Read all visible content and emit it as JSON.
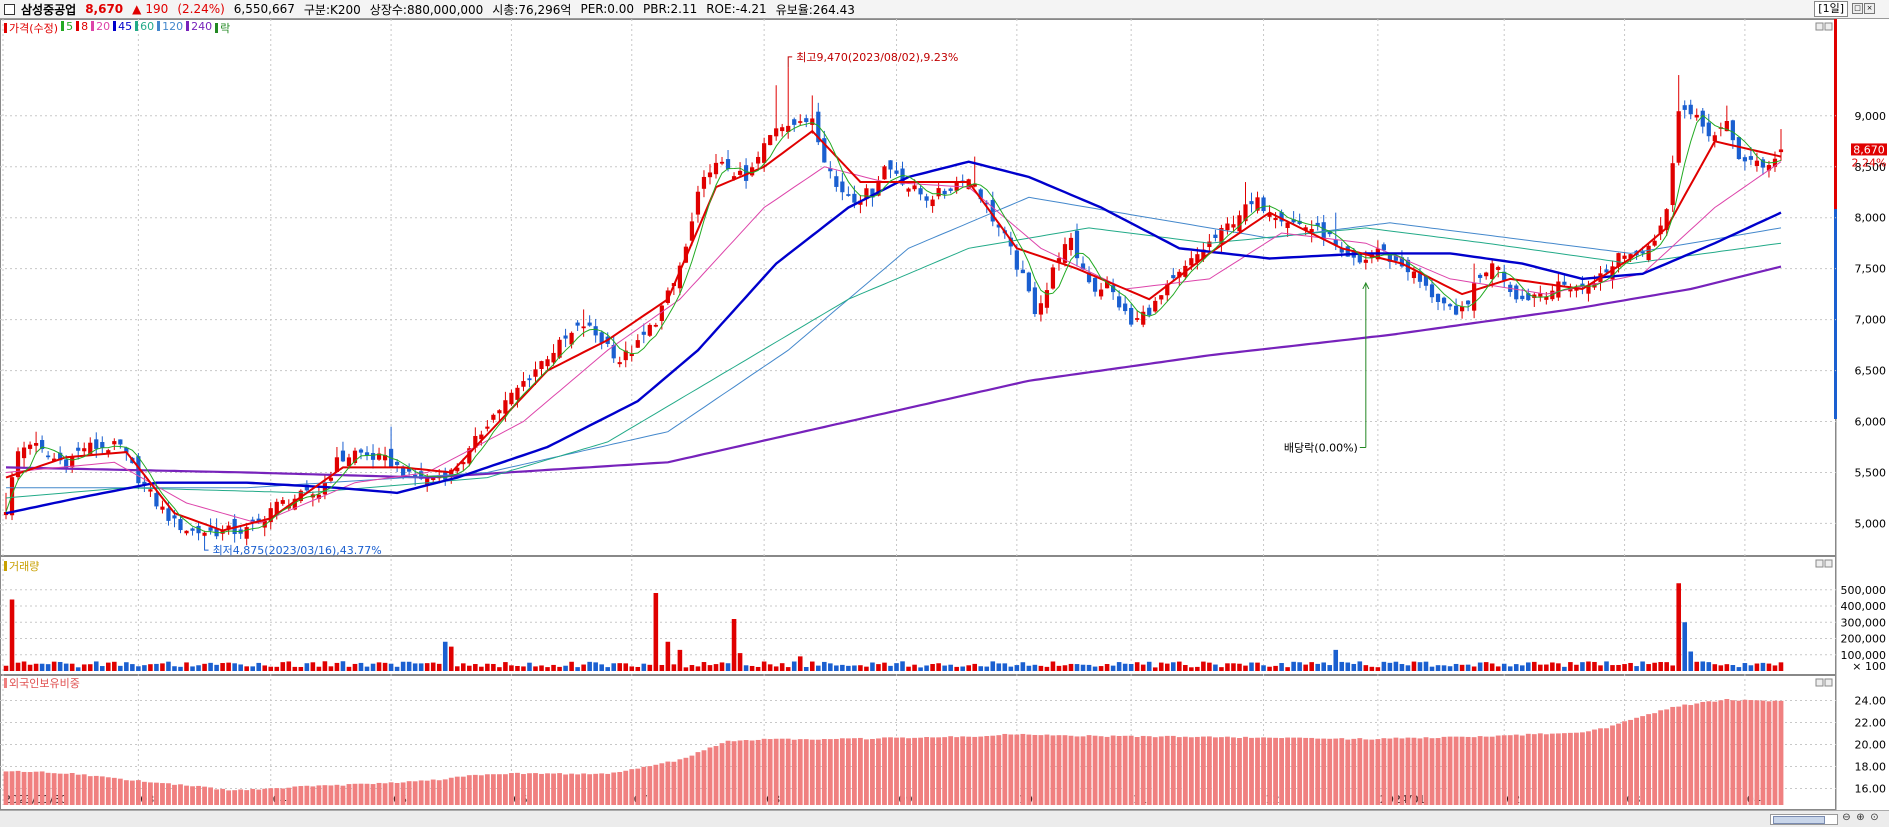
{
  "header": {
    "name": "삼성중공업",
    "price": "8,670",
    "change_arrow": "▲",
    "change": "190",
    "change_pct": "(2.24%)",
    "volume": "6,550,667",
    "category": "구분:K200",
    "shares": "상장수:880,000,000",
    "mktcap": "시총:76,296억",
    "per": "PER:0.00",
    "pbr": "PBR:2.11",
    "roe": "ROE:-4.21",
    "reserve": "유보율:264.43",
    "period": "[1일]"
  },
  "legend": [
    {
      "label": "가격(수정)",
      "color": "#e00000"
    },
    {
      "label": "5",
      "color": "#22aa22"
    },
    {
      "label": "8",
      "color": "#e00000"
    },
    {
      "label": "20",
      "color": "#dd44aa"
    },
    {
      "label": "45",
      "color": "#0000cc"
    },
    {
      "label": "60",
      "color": "#22aa88"
    },
    {
      "label": "120",
      "color": "#4488cc"
    },
    {
      "label": "240",
      "color": "#7722bb"
    },
    {
      "label": "락",
      "color": "#228822"
    }
  ],
  "panels": {
    "volume_label": "거래량",
    "foreign_label": "외국인보유비중"
  },
  "chart_data": {
    "type": "candlestick",
    "colors": {
      "up": "#e00000",
      "down": "#1a5fd0",
      "ma5": "#22aa22",
      "ma8": "#e00000",
      "ma20": "#dd44aa",
      "ma45": "#0000cc",
      "ma60": "#22aa88",
      "ma120": "#4488cc",
      "ma240": "#7722bb",
      "foreign": "#f08080",
      "grid": "#c8c8c8"
    },
    "price_axis": {
      "ticks": [
        "9,000",
        "8,500",
        "8,000",
        "7,500",
        "7,000",
        "6,500",
        "6,000",
        "5,500",
        "5,000"
      ],
      "values": [
        9000,
        8500,
        8000,
        7500,
        7000,
        6500,
        6000,
        5500,
        5000
      ],
      "ylim": [
        4700,
        9950
      ]
    },
    "volume_axis": {
      "ticks": [
        "500,000",
        "400,000",
        "300,000",
        "200,000",
        "100,000"
      ],
      "values": [
        500000,
        400000,
        300000,
        200000,
        100000
      ],
      "unit": "× 100",
      "ylim": [
        0,
        640000
      ]
    },
    "foreign_axis": {
      "ticks": [
        "24.00",
        "22.00",
        "20.00",
        "18.00",
        "16.00"
      ],
      "values": [
        24,
        22,
        20,
        18,
        16
      ],
      "ylim": [
        14.5,
        25.5
      ]
    },
    "x_labels": [
      "2023/01/30",
      "03",
      "04",
      "05",
      "06",
      "07",
      "08",
      "09",
      "10",
      "11",
      "12",
      "2024/01",
      "02",
      "03",
      "04"
    ],
    "x_label_idx": [
      0,
      22,
      44,
      64,
      84,
      104,
      126,
      148,
      168,
      187,
      209,
      228,
      249,
      269,
      289
    ],
    "n": 296,
    "close_anchors": [
      [
        0,
        5150
      ],
      [
        2,
        5700
      ],
      [
        4,
        5800
      ],
      [
        7,
        5650
      ],
      [
        10,
        5600
      ],
      [
        13,
        5750
      ],
      [
        16,
        5750
      ],
      [
        19,
        5750
      ],
      [
        22,
        5450
      ],
      [
        25,
        5200
      ],
      [
        28,
        5000
      ],
      [
        31,
        4920
      ],
      [
        35,
        4920
      ],
      [
        40,
        4930
      ],
      [
        42,
        5000
      ],
      [
        44,
        5150
      ],
      [
        48,
        5250
      ],
      [
        52,
        5300
      ],
      [
        55,
        5600
      ],
      [
        58,
        5700
      ],
      [
        61,
        5650
      ],
      [
        64,
        5600
      ],
      [
        67,
        5450
      ],
      [
        70,
        5450
      ],
      [
        74,
        5500
      ],
      [
        77,
        5700
      ],
      [
        80,
        6000
      ],
      [
        84,
        6250
      ],
      [
        87,
        6450
      ],
      [
        90,
        6650
      ],
      [
        93,
        6800
      ],
      [
        96,
        6950
      ],
      [
        100,
        6750
      ],
      [
        102,
        6600
      ],
      [
        105,
        6750
      ],
      [
        108,
        7000
      ],
      [
        111,
        7350
      ],
      [
        113,
        7700
      ],
      [
        115,
        8200
      ],
      [
        117,
        8500
      ],
      [
        120,
        8500
      ],
      [
        123,
        8350
      ],
      [
        126,
        8700
      ],
      [
        128,
        8900
      ],
      [
        130,
        8950
      ],
      [
        132,
        8900
      ],
      [
        134,
        9000
      ],
      [
        136,
        8600
      ],
      [
        138,
        8300
      ],
      [
        141,
        8200
      ],
      [
        144,
        8250
      ],
      [
        146,
        8500
      ],
      [
        148,
        8450
      ],
      [
        150,
        8300
      ],
      [
        153,
        8200
      ],
      [
        156,
        8250
      ],
      [
        159,
        8400
      ],
      [
        161,
        8350
      ],
      [
        163,
        8100
      ],
      [
        166,
        7800
      ],
      [
        169,
        7400
      ],
      [
        171,
        7100
      ],
      [
        173,
        7300
      ],
      [
        175,
        7650
      ],
      [
        177,
        7750
      ],
      [
        179,
        7500
      ],
      [
        181,
        7300
      ],
      [
        183,
        7350
      ],
      [
        185,
        7150
      ],
      [
        187,
        6950
      ],
      [
        189,
        7050
      ],
      [
        191,
        7150
      ],
      [
        193,
        7300
      ],
      [
        196,
        7500
      ],
      [
        199,
        7700
      ],
      [
        202,
        7850
      ],
      [
        205,
        8050
      ],
      [
        208,
        8150
      ],
      [
        211,
        8050
      ],
      [
        214,
        7950
      ],
      [
        217,
        7900
      ],
      [
        220,
        7800
      ],
      [
        222,
        7600
      ],
      [
        225,
        7550
      ],
      [
        228,
        7700
      ],
      [
        230,
        7600
      ],
      [
        233,
        7500
      ],
      [
        236,
        7300
      ],
      [
        239,
        7150
      ],
      [
        241,
        7000
      ],
      [
        244,
        7300
      ],
      [
        246,
        7500
      ],
      [
        248,
        7550
      ],
      [
        250,
        7300
      ],
      [
        252,
        7200
      ],
      [
        254,
        7250
      ],
      [
        257,
        7300
      ],
      [
        260,
        7350
      ],
      [
        262,
        7300
      ],
      [
        264,
        7400
      ],
      [
        266,
        7450
      ],
      [
        268,
        7650
      ],
      [
        270,
        7650
      ],
      [
        272,
        7700
      ],
      [
        274,
        7800
      ],
      [
        276,
        8050
      ],
      [
        278,
        9100
      ],
      [
        280,
        9000
      ],
      [
        282,
        8900
      ],
      [
        284,
        8800
      ],
      [
        286,
        8900
      ],
      [
        288,
        8600
      ],
      [
        290,
        8550
      ],
      [
        292,
        8480
      ],
      [
        293,
        8550
      ],
      [
        295,
        8670
      ]
    ],
    "high_anchors": [
      [
        0,
        5300
      ],
      [
        5,
        5900
      ],
      [
        15,
        5850
      ],
      [
        35,
        5050
      ],
      [
        55,
        5750
      ],
      [
        64,
        5950
      ],
      [
        96,
        7100
      ],
      [
        128,
        9300
      ],
      [
        130,
        9470
      ],
      [
        134,
        9200
      ],
      [
        161,
        8600
      ],
      [
        206,
        8350
      ],
      [
        221,
        8050
      ],
      [
        244,
        7550
      ],
      [
        278,
        9400
      ],
      [
        286,
        9100
      ],
      [
        295,
        8870
      ]
    ],
    "ma_anchors": {
      "ma8": [
        [
          0,
          5450
        ],
        [
          10,
          5650
        ],
        [
          20,
          5700
        ],
        [
          28,
          5100
        ],
        [
          36,
          4930
        ],
        [
          44,
          5050
        ],
        [
          56,
          5550
        ],
        [
          66,
          5550
        ],
        [
          74,
          5500
        ],
        [
          90,
          6500
        ],
        [
          100,
          6800
        ],
        [
          110,
          7200
        ],
        [
          118,
          8300
        ],
        [
          126,
          8500
        ],
        [
          134,
          8850
        ],
        [
          142,
          8350
        ],
        [
          150,
          8350
        ],
        [
          160,
          8350
        ],
        [
          168,
          7700
        ],
        [
          178,
          7500
        ],
        [
          190,
          7200
        ],
        [
          200,
          7650
        ],
        [
          210,
          8050
        ],
        [
          222,
          7700
        ],
        [
          232,
          7550
        ],
        [
          242,
          7250
        ],
        [
          250,
          7400
        ],
        [
          262,
          7300
        ],
        [
          270,
          7600
        ],
        [
          276,
          7900
        ],
        [
          284,
          8750
        ],
        [
          295,
          8600
        ]
      ],
      "ma20": [
        [
          0,
          5500
        ],
        [
          18,
          5600
        ],
        [
          30,
          5200
        ],
        [
          42,
          5000
        ],
        [
          58,
          5400
        ],
        [
          70,
          5500
        ],
        [
          86,
          6000
        ],
        [
          100,
          6700
        ],
        [
          112,
          7200
        ],
        [
          126,
          8100
        ],
        [
          136,
          8500
        ],
        [
          146,
          8350
        ],
        [
          160,
          8300
        ],
        [
          172,
          7700
        ],
        [
          186,
          7300
        ],
        [
          200,
          7400
        ],
        [
          212,
          7850
        ],
        [
          226,
          7750
        ],
        [
          240,
          7400
        ],
        [
          256,
          7250
        ],
        [
          272,
          7450
        ],
        [
          284,
          8100
        ],
        [
          295,
          8550
        ]
      ],
      "ma45": [
        [
          0,
          5100
        ],
        [
          12,
          5250
        ],
        [
          25,
          5400
        ],
        [
          40,
          5400
        ],
        [
          55,
          5350
        ],
        [
          65,
          5300
        ],
        [
          75,
          5450
        ],
        [
          90,
          5750
        ],
        [
          105,
          6200
        ],
        [
          115,
          6700
        ],
        [
          128,
          7550
        ],
        [
          140,
          8100
        ],
        [
          150,
          8400
        ],
        [
          160,
          8550
        ],
        [
          170,
          8400
        ],
        [
          182,
          8100
        ],
        [
          195,
          7700
        ],
        [
          210,
          7600
        ],
        [
          226,
          7650
        ],
        [
          240,
          7650
        ],
        [
          252,
          7550
        ],
        [
          262,
          7400
        ],
        [
          272,
          7450
        ],
        [
          284,
          7750
        ],
        [
          295,
          8050
        ]
      ],
      "ma60": [
        [
          0,
          5250
        ],
        [
          20,
          5350
        ],
        [
          50,
          5300
        ],
        [
          80,
          5450
        ],
        [
          100,
          5800
        ],
        [
          120,
          6500
        ],
        [
          140,
          7200
        ],
        [
          160,
          7700
        ],
        [
          180,
          7900
        ],
        [
          200,
          7750
        ],
        [
          226,
          7900
        ],
        [
          246,
          7750
        ],
        [
          270,
          7550
        ],
        [
          295,
          7750
        ]
      ],
      "ma120": [
        [
          0,
          5350
        ],
        [
          40,
          5350
        ],
        [
          80,
          5500
        ],
        [
          110,
          5900
        ],
        [
          130,
          6700
        ],
        [
          150,
          7700
        ],
        [
          170,
          8200
        ],
        [
          190,
          8000
        ],
        [
          210,
          7800
        ],
        [
          230,
          7950
        ],
        [
          250,
          7800
        ],
        [
          270,
          7650
        ],
        [
          295,
          7900
        ]
      ],
      "ma240": [
        [
          0,
          5550
        ],
        [
          40,
          5500
        ],
        [
          70,
          5450
        ],
        [
          110,
          5600
        ],
        [
          140,
          6000
        ],
        [
          170,
          6400
        ],
        [
          200,
          6650
        ],
        [
          230,
          6850
        ],
        [
          260,
          7100
        ],
        [
          280,
          7300
        ],
        [
          295,
          7520
        ]
      ]
    },
    "volume_spikes": [
      [
        1,
        440000
      ],
      [
        73,
        180000
      ],
      [
        74,
        150000
      ],
      [
        108,
        480000
      ],
      [
        110,
        180000
      ],
      [
        112,
        130000
      ],
      [
        121,
        320000
      ],
      [
        122,
        110000
      ],
      [
        132,
        90000
      ],
      [
        221,
        130000
      ],
      [
        278,
        540000
      ],
      [
        279,
        300000
      ],
      [
        280,
        120000
      ]
    ],
    "foreign_anchors": [
      [
        0,
        17.6
      ],
      [
        10,
        17.4
      ],
      [
        20,
        16.8
      ],
      [
        30,
        16.3
      ],
      [
        36,
        15.9
      ],
      [
        42,
        15.9
      ],
      [
        50,
        16.2
      ],
      [
        60,
        16.4
      ],
      [
        70,
        16.7
      ],
      [
        78,
        17.2
      ],
      [
        84,
        17.4
      ],
      [
        100,
        17.3
      ],
      [
        112,
        18.6
      ],
      [
        120,
        20.3
      ],
      [
        126,
        20.5
      ],
      [
        140,
        20.5
      ],
      [
        164,
        20.8
      ],
      [
        166,
        21.0
      ],
      [
        176,
        20.8
      ],
      [
        196,
        20.7
      ],
      [
        210,
        20.6
      ],
      [
        226,
        20.5
      ],
      [
        236,
        20.6
      ],
      [
        248,
        20.8
      ],
      [
        262,
        21.1
      ],
      [
        266,
        21.5
      ],
      [
        270,
        22.3
      ],
      [
        278,
        23.5
      ],
      [
        286,
        24.1
      ],
      [
        295,
        23.9
      ]
    ],
    "annotations": {
      "high": "최고9,470(2023/08/02),9.23%",
      "low": "최저4,875(2023/03/16),43.77%",
      "dividend": "배당락(0.00%)",
      "high_idx": 130,
      "low_idx": 33,
      "dividend_idx": 226
    },
    "current_label": "8,670",
    "current_pct": "2.24%",
    "last_close": 8670
  }
}
